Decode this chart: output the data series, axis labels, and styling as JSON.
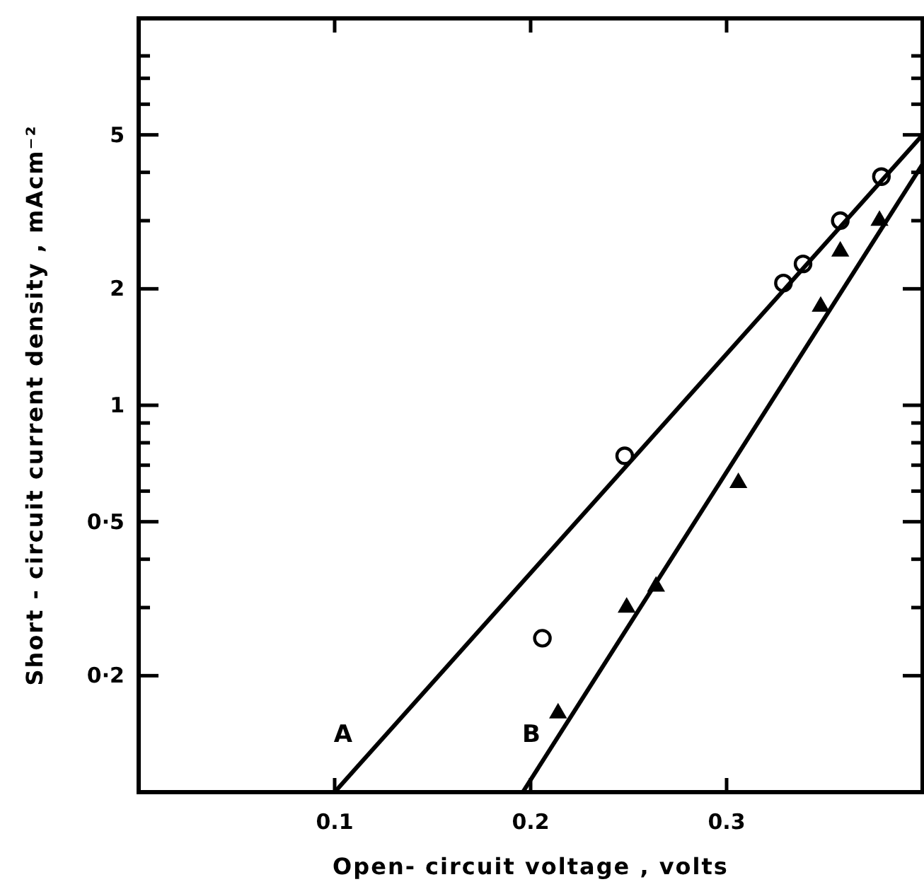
{
  "chart_data": {
    "type": "scatter",
    "xlabel": "Open- circuit voltage , volts",
    "ylabel": "Short - circuit current density , mAcm⁻²",
    "log": "y",
    "xlim": [
      0,
      0.4
    ],
    "ylim": [
      0.1,
      10
    ],
    "xticks": [
      0.1,
      0.2,
      0.3
    ],
    "yticks": [
      {
        "value": 0.2,
        "label": "0·2"
      },
      {
        "value": 0.3,
        "label": null
      },
      {
        "value": 0.4,
        "label": null
      },
      {
        "value": 0.5,
        "label": "0·5"
      },
      {
        "value": 0.6,
        "label": null
      },
      {
        "value": 0.7,
        "label": null
      },
      {
        "value": 0.8,
        "label": null
      },
      {
        "value": 0.9,
        "label": null
      },
      1,
      2,
      {
        "value": 3,
        "label": null
      },
      {
        "value": 4,
        "label": null
      },
      5,
      {
        "value": 6,
        "label": null
      },
      {
        "value": 7,
        "label": null
      },
      {
        "value": 8,
        "label": null
      }
    ],
    "grid": false,
    "series": [
      {
        "marker": "circle",
        "color": "#000000",
        "x": [
          0.206,
          0.248,
          0.329,
          0.339,
          0.358,
          0.379
        ],
        "values": [
          0.25,
          0.74,
          2.07,
          2.32,
          3.0,
          3.9
        ]
      },
      {
        "marker": "triangle",
        "color": "#000000",
        "x": [
          0.214,
          0.249,
          0.264,
          0.306,
          0.348,
          0.358,
          0.378
        ],
        "values": [
          0.16,
          0.3,
          0.34,
          0.63,
          1.8,
          2.5,
          3.0
        ]
      },
      {
        "type": "line",
        "name": "A",
        "marker": "none",
        "color": "#000000",
        "x": [
          0.1,
          0.4
        ],
        "values": [
          0.1,
          5
        ]
      },
      {
        "type": "line",
        "name": "B",
        "marker": "none",
        "color": "#000000",
        "x": [
          0.196,
          0.4
        ],
        "values": [
          0.1,
          4.2
        ]
      }
    ]
  }
}
